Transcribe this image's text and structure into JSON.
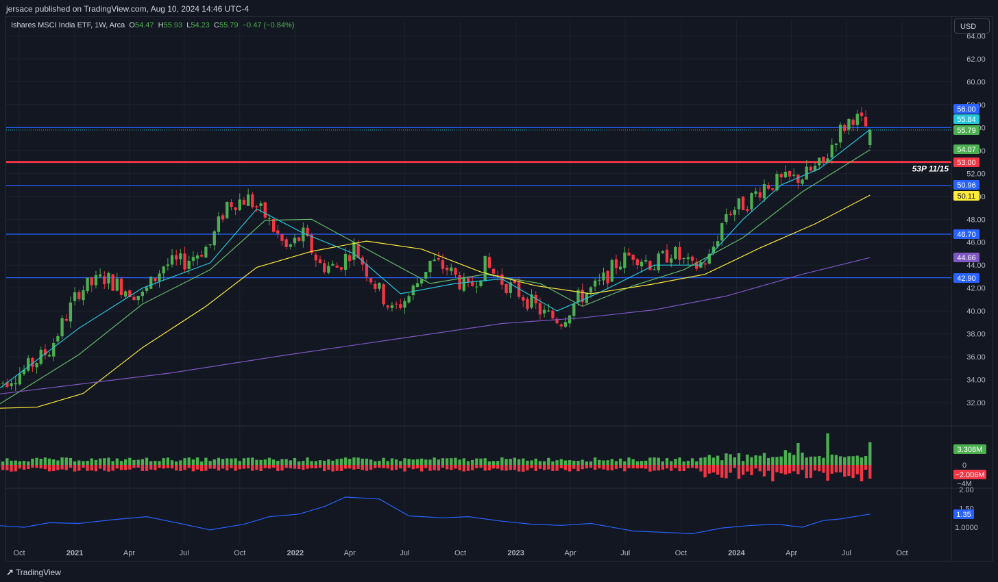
{
  "header": {
    "published": "jersace published on TradingView.com, Aug 10, 2024 14:46 UTC-4",
    "currency_button": "USD"
  },
  "legend": {
    "symbol": "Ishares MSCI India ETF, 1W, Arca",
    "o_label": "O",
    "o_value": "54.47",
    "h_label": "H",
    "h_value": "55.93",
    "l_label": "L",
    "l_value": "54.23",
    "c_label": "C",
    "c_value": "55.79",
    "change": "−0.47 (−0.84%)"
  },
  "footer": {
    "brand": "TradingView"
  },
  "colors": {
    "background": "#131722",
    "up": "#4caf50",
    "down": "#f23645",
    "blue_level": "#2962ff",
    "red_level": "#f23645",
    "ema_fast": "#26c6da",
    "ema_mid": "#66bb6a",
    "sma_slow": "#ffeb3b",
    "sma_long": "#7e57c2",
    "indicator": "#2962ff"
  },
  "chart_data": [
    {
      "type": "candlestick",
      "title": "Ishares MSCI India ETF, 1W, Arca",
      "y_ticks": [
        "32.00",
        "34.00",
        "36.00",
        "38.00",
        "40.00",
        "42.00",
        "44.00",
        "46.00",
        "48.00",
        "50.00",
        "52.00",
        "54.00",
        "56.00",
        "58.00",
        "60.00",
        "62.00",
        "64.00"
      ],
      "ylim": [
        30.5,
        64.5
      ],
      "x_ticks": [
        "Oct",
        "2021",
        "Apr",
        "Jul",
        "Oct",
        "2022",
        "Apr",
        "Jul",
        "Oct",
        "2023",
        "Apr",
        "Jul",
        "Oct",
        "2024",
        "Apr",
        "Jul",
        "Oct"
      ],
      "x_tick_dates": [
        "2020-10-01",
        "2021-01-01",
        "2021-04-01",
        "2021-07-01",
        "2021-10-01",
        "2022-01-01",
        "2022-04-01",
        "2022-07-01",
        "2022-10-01",
        "2023-01-01",
        "2023-04-01",
        "2023-07-01",
        "2023-10-01",
        "2024-01-01",
        "2024-04-01",
        "2024-07-01",
        "2024-10-01"
      ],
      "close_series": [
        [
          "2020-08-21",
          33.5
        ],
        [
          "2020-10-09",
          34.8
        ],
        [
          "2020-11-20",
          36.6
        ],
        [
          "2021-01-08",
          41.8
        ],
        [
          "2021-02-19",
          42.9
        ],
        [
          "2021-03-19",
          42.1
        ],
        [
          "2021-04-23",
          41.3
        ],
        [
          "2021-05-28",
          44.0
        ],
        [
          "2021-07-02",
          44.3
        ],
        [
          "2021-08-13",
          45.8
        ],
        [
          "2021-09-10",
          49.4
        ],
        [
          "2021-10-15",
          49.8
        ],
        [
          "2021-11-12",
          48.3
        ],
        [
          "2021-12-17",
          45.4
        ],
        [
          "2022-01-14",
          46.6
        ],
        [
          "2022-02-11",
          44.0
        ],
        [
          "2022-03-11",
          43.8
        ],
        [
          "2022-04-08",
          45.6
        ],
        [
          "2022-05-06",
          42.9
        ],
        [
          "2022-06-10",
          40.0
        ],
        [
          "2022-07-08",
          41.3
        ],
        [
          "2022-08-12",
          44.3
        ],
        [
          "2022-09-09",
          43.7
        ],
        [
          "2022-10-14",
          41.8
        ],
        [
          "2022-11-11",
          44.0
        ],
        [
          "2022-12-09",
          42.6
        ],
        [
          "2023-01-13",
          41.3
        ],
        [
          "2023-02-17",
          39.7
        ],
        [
          "2023-03-17",
          39.2
        ],
        [
          "2023-04-14",
          41.1
        ],
        [
          "2023-05-19",
          42.3
        ],
        [
          "2023-06-16",
          44.1
        ],
        [
          "2023-07-14",
          45.0
        ],
        [
          "2023-08-18",
          44.0
        ],
        [
          "2023-09-15",
          45.2
        ],
        [
          "2023-10-20",
          43.7
        ],
        [
          "2023-11-17",
          44.6
        ],
        [
          "2023-12-15",
          48.6
        ],
        [
          "2024-01-19",
          49.5
        ],
        [
          "2024-02-16",
          51.0
        ],
        [
          "2024-03-15",
          51.3
        ],
        [
          "2024-04-19",
          51.7
        ],
        [
          "2024-05-24",
          52.9
        ],
        [
          "2024-06-14",
          55.3
        ],
        [
          "2024-07-12",
          57.0
        ],
        [
          "2024-08-09",
          55.79
        ]
      ],
      "last_bar": {
        "open": 54.47,
        "high": 55.93,
        "low": 54.23,
        "close": 55.79
      },
      "moving_averages": [
        {
          "color": "#26c6da",
          "last_value": 55.84,
          "points": [
            [
              "2020-08-21",
              32.9
            ],
            [
              "2021-01-08",
              38.5
            ],
            [
              "2021-04-23",
              42.0
            ],
            [
              "2021-08-13",
              44.2
            ],
            [
              "2021-10-29",
              48.9
            ],
            [
              "2022-01-14",
              46.8
            ],
            [
              "2022-04-08",
              45.0
            ],
            [
              "2022-06-24",
              41.5
            ],
            [
              "2022-09-23",
              42.4
            ],
            [
              "2022-12-09",
              42.8
            ],
            [
              "2023-03-10",
              40.0
            ],
            [
              "2023-05-19",
              41.6
            ],
            [
              "2023-08-18",
              44.0
            ],
            [
              "2023-11-03",
              44.0
            ],
            [
              "2024-01-12",
              48.0
            ],
            [
              "2024-03-15",
              51.0
            ],
            [
              "2024-05-17",
              52.4
            ],
            [
              "2024-08-09",
              55.84
            ]
          ]
        },
        {
          "color": "#66bb6a",
          "last_value": 54.07,
          "points": [
            [
              "2020-08-21",
              31.6
            ],
            [
              "2021-01-08",
              36.2
            ],
            [
              "2021-04-23",
              40.6
            ],
            [
              "2021-08-13",
              43.6
            ],
            [
              "2021-11-12",
              47.9
            ],
            [
              "2022-01-28",
              48.0
            ],
            [
              "2022-04-29",
              45.4
            ],
            [
              "2022-08-12",
              42.4
            ],
            [
              "2022-11-11",
              43.2
            ],
            [
              "2023-02-10",
              42.4
            ],
            [
              "2023-04-21",
              40.4
            ],
            [
              "2023-07-14",
              42.2
            ],
            [
              "2023-10-06",
              43.6
            ],
            [
              "2024-01-12",
              46.4
            ],
            [
              "2024-04-19",
              50.4
            ],
            [
              "2024-08-09",
              54.07
            ]
          ]
        },
        {
          "color": "#ffeb3b",
          "last_value": 50.11,
          "points": [
            [
              "2020-08-21",
              31.5
            ],
            [
              "2020-10-30",
              31.6
            ],
            [
              "2021-01-15",
              32.8
            ],
            [
              "2021-04-23",
              36.8
            ],
            [
              "2021-08-06",
              40.4
            ],
            [
              "2021-10-29",
              43.8
            ],
            [
              "2022-01-28",
              45.2
            ],
            [
              "2022-04-29",
              46.1
            ],
            [
              "2022-07-29",
              45.4
            ],
            [
              "2022-11-04",
              43.4
            ],
            [
              "2023-02-03",
              42.2
            ],
            [
              "2023-05-05",
              41.5
            ],
            [
              "2023-08-11",
              42.3
            ],
            [
              "2023-11-10",
              43.2
            ],
            [
              "2024-02-09",
              45.5
            ],
            [
              "2024-05-10",
              47.6
            ],
            [
              "2024-08-09",
              50.11
            ]
          ]
        },
        {
          "color": "#7e57c2",
          "last_value": 44.66,
          "points": [
            [
              "2020-08-21",
              32.7
            ],
            [
              "2021-06-11",
              34.6
            ],
            [
              "2021-12-10",
              36.1
            ],
            [
              "2022-06-10",
              37.5
            ],
            [
              "2022-12-09",
              38.9
            ],
            [
              "2023-04-21",
              39.4
            ],
            [
              "2023-08-18",
              40.1
            ],
            [
              "2023-12-15",
              41.3
            ],
            [
              "2024-04-19",
              43.2
            ],
            [
              "2024-08-09",
              44.66
            ]
          ]
        }
      ],
      "horizontal_levels": [
        {
          "value": 56.0,
          "label": "56.00",
          "color": "#2962ff"
        },
        {
          "value": 53.0,
          "label": "53.00",
          "color": "#f23645",
          "annotation": "53P 11/15"
        },
        {
          "value": 50.96,
          "label": "50.96",
          "color": "#2962ff"
        },
        {
          "value": 46.7,
          "label": "46.70",
          "color": "#2962ff"
        },
        {
          "value": 42.9,
          "label": "42.90",
          "color": "#2962ff"
        }
      ],
      "price_labels": [
        {
          "value": "56.00",
          "color": "#2962ff"
        },
        {
          "value": "55.84",
          "color": "#26c6da"
        },
        {
          "value": "55.79",
          "color": "#4caf50"
        },
        {
          "value": "54.07",
          "color": "#4caf50"
        },
        {
          "value": "53.00",
          "color": "#f23645"
        },
        {
          "value": "50.96",
          "color": "#2962ff"
        },
        {
          "value": "50.11",
          "color": "#ffeb3b"
        },
        {
          "value": "46.70",
          "color": "#2962ff"
        },
        {
          "value": "44.66",
          "color": "#7e57c2"
        },
        {
          "value": "42.90",
          "color": "#2962ff"
        }
      ]
    },
    {
      "type": "bar",
      "ticks": [
        "0",
        "−4M"
      ],
      "last_positive": "3.308M",
      "last_negative": "−2.006M",
      "spike_positive_millions": [
        [
          "2024-04-12",
          3.2
        ],
        [
          "2024-05-31",
          4.6
        ],
        [
          "2024-08-09",
          3.308
        ]
      ],
      "spike_negative_millions": [
        [
          "2024-03-01",
          -2.4
        ],
        [
          "2024-07-26",
          -2.4
        ],
        [
          "2024-08-09",
          -2.006
        ]
      ]
    },
    {
      "type": "line",
      "ticks": [
        "2.00",
        "1.50",
        "1.0000"
      ],
      "ylim": [
        0.85,
        2.1
      ],
      "last_value": "1.35",
      "points": [
        [
          "2020-08-21",
          1.05
        ],
        [
          "2020-10-09",
          1.0
        ],
        [
          "2020-11-20",
          1.12
        ],
        [
          "2021-01-08",
          1.1
        ],
        [
          "2021-03-05",
          1.2
        ],
        [
          "2021-04-30",
          1.28
        ],
        [
          "2021-06-18",
          1.12
        ],
        [
          "2021-08-13",
          0.93
        ],
        [
          "2021-10-08",
          1.08
        ],
        [
          "2021-11-19",
          1.28
        ],
        [
          "2022-01-07",
          1.35
        ],
        [
          "2022-02-18",
          1.55
        ],
        [
          "2022-03-25",
          1.8
        ],
        [
          "2022-05-20",
          1.75
        ],
        [
          "2022-07-08",
          1.3
        ],
        [
          "2022-09-02",
          1.25
        ],
        [
          "2022-10-14",
          1.28
        ],
        [
          "2022-12-09",
          1.16
        ],
        [
          "2023-01-27",
          1.08
        ],
        [
          "2023-03-17",
          1.05
        ],
        [
          "2023-05-05",
          1.1
        ],
        [
          "2023-07-14",
          0.9
        ],
        [
          "2023-09-08",
          0.86
        ],
        [
          "2023-10-20",
          0.83
        ],
        [
          "2023-12-08",
          0.98
        ],
        [
          "2024-01-26",
          1.05
        ],
        [
          "2024-03-08",
          1.08
        ],
        [
          "2024-04-19",
          1.0
        ],
        [
          "2024-05-24",
          1.18
        ],
        [
          "2024-06-21",
          1.22
        ],
        [
          "2024-08-09",
          1.35
        ]
      ]
    }
  ]
}
